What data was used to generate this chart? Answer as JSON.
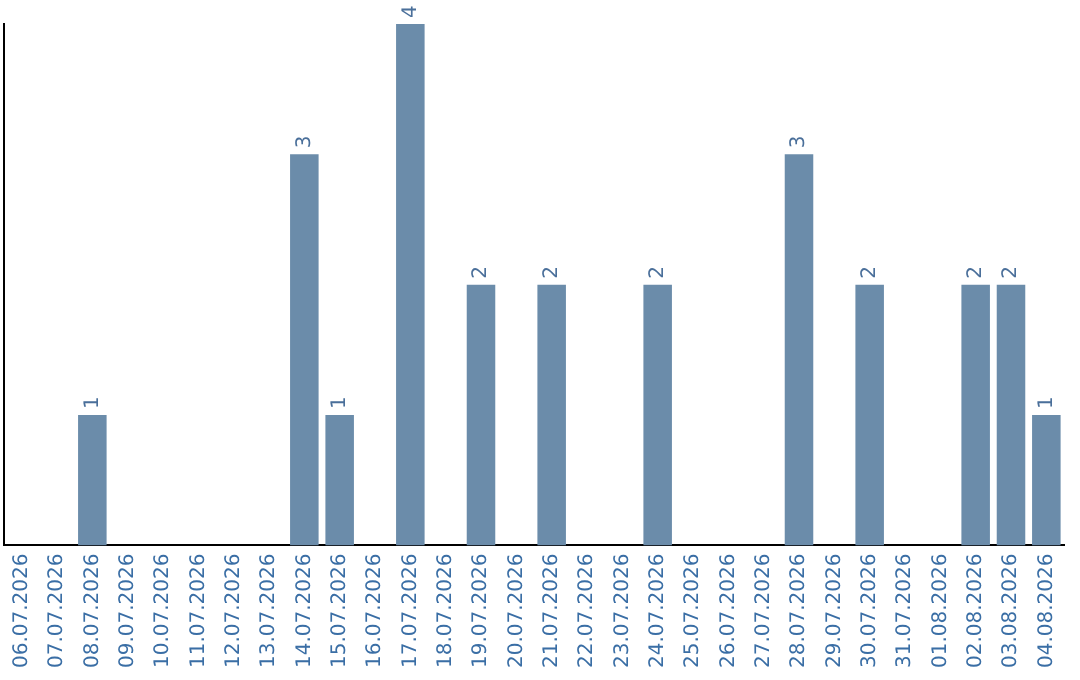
{
  "chart_data": {
    "type": "bar",
    "categories": [
      "06.07.2026",
      "07.07.2026",
      "08.07.2026",
      "09.07.2026",
      "10.07.2026",
      "11.07.2026",
      "12.07.2026",
      "13.07.2026",
      "14.07.2026",
      "15.07.2026",
      "16.07.2026",
      "17.07.2026",
      "18.07.2026",
      "19.07.2026",
      "20.07.2026",
      "21.07.2026",
      "22.07.2026",
      "23.07.2026",
      "24.07.2026",
      "25.07.2026",
      "26.07.2026",
      "27.07.2026",
      "28.07.2026",
      "29.07.2026",
      "30.07.2026",
      "31.07.2026",
      "01.08.2026",
      "02.08.2026",
      "03.08.2026",
      "04.08.2026"
    ],
    "values": [
      0,
      0,
      1,
      0,
      0,
      0,
      0,
      0,
      3,
      1,
      0,
      4,
      0,
      2,
      0,
      2,
      0,
      0,
      2,
      0,
      0,
      0,
      3,
      0,
      2,
      0,
      0,
      2,
      2,
      1
    ],
    "value_labels": [
      null,
      null,
      "1",
      null,
      null,
      null,
      null,
      null,
      "3",
      "1",
      null,
      "4",
      null,
      "2",
      null,
      "2",
      null,
      null,
      "2",
      null,
      null,
      null,
      "3",
      null,
      "2",
      null,
      null,
      "2",
      "2",
      "1"
    ],
    "color": "#6b8caa",
    "ylim": [
      0,
      4
    ],
    "tick_labels": "x",
    "grid": false,
    "legend": false
  }
}
